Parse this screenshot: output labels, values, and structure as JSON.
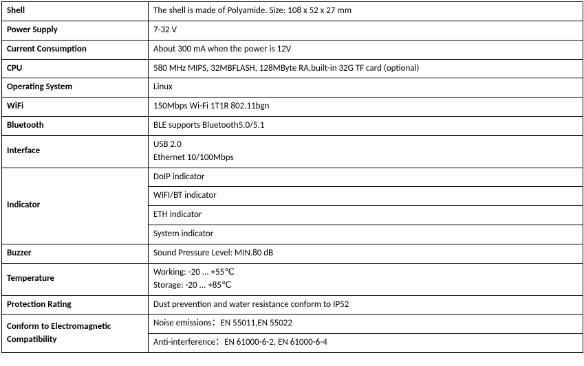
{
  "rows": [
    {
      "label": "Shell",
      "values": [
        "The shell is made of Polyamide. Size: 108 x 52 x 27 mm"
      ]
    },
    {
      "label": "Power Supply",
      "values": [
        "7-32 V"
      ]
    },
    {
      "label": "Current Consumption",
      "values": [
        "About 300 mA when the power is 12V"
      ]
    },
    {
      "label": "CPU",
      "values": [
        "580 MHz MIPS, 32MBFLASH, 128MByte RA,built-in 32G TF card (optional)"
      ]
    },
    {
      "label": "Operating System",
      "values": [
        "Linux"
      ]
    },
    {
      "label": "WiFi",
      "values": [
        "150Mbps Wi-Fi 1T1R 802.11bgn"
      ]
    },
    {
      "label": "Bluetooth",
      "values": [
        "BLE supports Bluetooth5.0/5.1"
      ]
    },
    {
      "label": "Interface",
      "values": [
        "USB 2.0\nEthernet 10/100Mbps"
      ]
    },
    {
      "label": "Indicator",
      "values": [
        "DoIP indicator",
        "WIFI/BT indicator",
        "ETH indicator",
        "System indicator"
      ]
    },
    {
      "label": "Buzzer",
      "values": [
        "Sound Pressure Level:  MIN.80 dB"
      ]
    },
    {
      "label": "Temperature",
      "values": [
        "Working: -20 ... +55℃\nStorage: -20 ... +85℃"
      ]
    },
    {
      "label": "Protection Rating",
      "values": [
        "Dust prevention and water resistance conform to IP52"
      ]
    },
    {
      "label": "Conform to Electromagnetic Compatibility",
      "values": [
        "Noise emissions：EN 55011,EN 55022",
        "Anti-interference：EN 61000-6-2, EN 61000-6-4"
      ]
    }
  ]
}
